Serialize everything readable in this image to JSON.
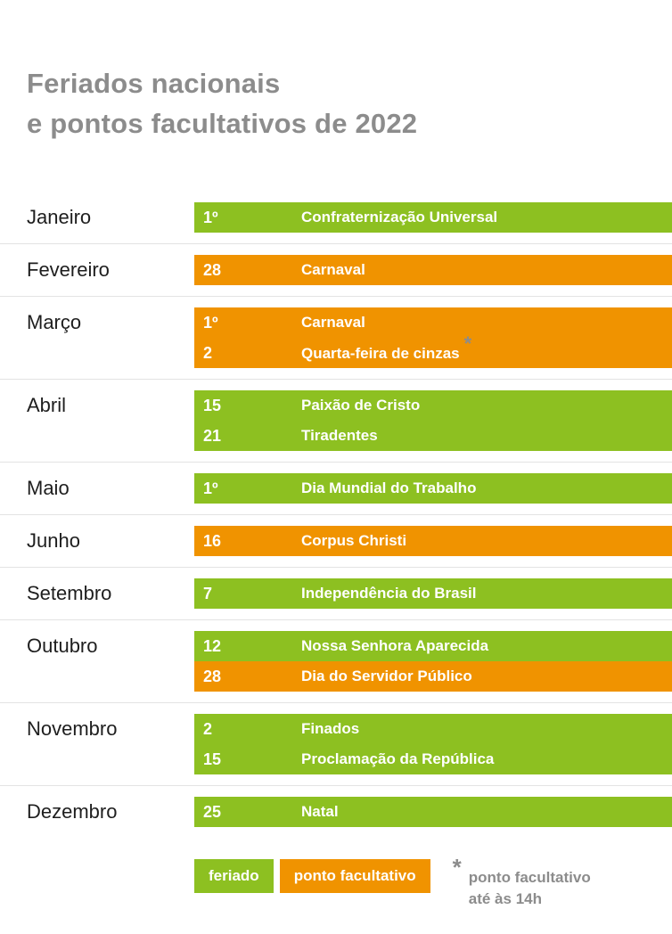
{
  "title": {
    "line1": "Feriados nacionais",
    "line2": "e pontos facultativos de 2022"
  },
  "colors": {
    "feriado": "#8DC021",
    "ponto_facultativo": "#F09300",
    "title_text": "#8C8C8C",
    "month_text": "#1E1E1E",
    "bar_text": "#FFFFFF",
    "divider": "#E3E3E3",
    "note_text": "#8C8C8C"
  },
  "chart_data": {
    "type": "table",
    "title": "Feriados nacionais e pontos facultativos de 2022",
    "legend_position": "bottom",
    "categories": [
      "feriado",
      "ponto facultativo"
    ],
    "rows": [
      {
        "month": "Janeiro",
        "entries": [
          {
            "day": "1º",
            "name": "Confraternização Universal",
            "type": "feriado",
            "asterisk": false
          }
        ]
      },
      {
        "month": "Fevereiro",
        "entries": [
          {
            "day": "28",
            "name": "Carnaval",
            "type": "ponto_facultativo",
            "asterisk": false
          }
        ]
      },
      {
        "month": "Março",
        "entries": [
          {
            "day": "1º",
            "name": "Carnaval",
            "type": "ponto_facultativo",
            "asterisk": false
          },
          {
            "day": "2",
            "name": "Quarta-feira de cinzas",
            "type": "ponto_facultativo",
            "asterisk": true
          }
        ]
      },
      {
        "month": "Abril",
        "entries": [
          {
            "day": "15",
            "name": "Paixão de Cristo",
            "type": "feriado",
            "asterisk": false
          },
          {
            "day": "21",
            "name": "Tiradentes",
            "type": "feriado",
            "asterisk": false
          }
        ]
      },
      {
        "month": "Maio",
        "entries": [
          {
            "day": "1º",
            "name": "Dia Mundial do Trabalho",
            "type": "feriado",
            "asterisk": false
          }
        ]
      },
      {
        "month": "Junho",
        "entries": [
          {
            "day": "16",
            "name": "Corpus Christi",
            "type": "ponto_facultativo",
            "asterisk": false
          }
        ]
      },
      {
        "month": "Setembro",
        "entries": [
          {
            "day": "7",
            "name": "Independência do Brasil",
            "type": "feriado",
            "asterisk": false
          }
        ]
      },
      {
        "month": "Outubro",
        "entries": [
          {
            "day": "12",
            "name": "Nossa Senhora Aparecida",
            "type": "feriado",
            "asterisk": false
          },
          {
            "day": "28",
            "name": "Dia do Servidor Público",
            "type": "ponto_facultativo",
            "asterisk": false
          }
        ]
      },
      {
        "month": "Novembro",
        "entries": [
          {
            "day": "2",
            "name": "Finados",
            "type": "feriado",
            "asterisk": false
          },
          {
            "day": "15",
            "name": "Proclamação da República",
            "type": "feriado",
            "asterisk": false
          }
        ]
      },
      {
        "month": "Dezembro",
        "entries": [
          {
            "day": "25",
            "name": "Natal",
            "type": "feriado",
            "asterisk": false
          }
        ]
      }
    ]
  },
  "legend": {
    "feriado_label": "feriado",
    "ponto_facultativo_label": "ponto facultativo",
    "asterisk": "*",
    "note_line1": "ponto facultativo",
    "note_line2": "até às 14h"
  },
  "bar_asterisk": "*"
}
